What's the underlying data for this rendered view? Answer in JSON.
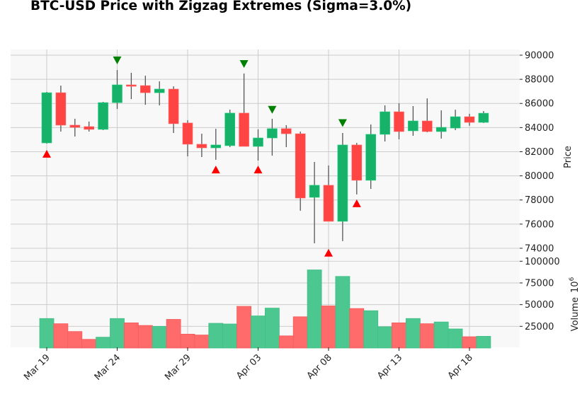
{
  "chart_data": {
    "type": "candlestick",
    "title": "BTC-USD Price with Zigzag Extremes (Sigma=3.0%)",
    "ylabel": "Price",
    "volume_ylabel": "Volume",
    "volume_exponent": "10",
    "volume_exponent_power": "6",
    "ylim": [
      73600,
      90400
    ],
    "volume_ylim": [
      0,
      103000
    ],
    "y_ticks": [
      74000,
      76000,
      78000,
      80000,
      82000,
      84000,
      86000,
      88000,
      90000
    ],
    "volume_ticks": [
      25000,
      50000,
      75000,
      100000
    ],
    "x_tick_labels": [
      "Mar 19",
      "Mar 24",
      "Mar 29",
      "Apr 03",
      "Apr 08",
      "Apr 13",
      "Apr 18"
    ],
    "x_tick_indices": [
      0,
      5,
      10,
      15,
      20,
      25,
      30
    ],
    "grid": true,
    "colors": {
      "up": "#17b26a",
      "down": "#ff4444",
      "up_volume": "#4dc790",
      "down_volume": "#ff6b6b",
      "wick": "#555555",
      "peak_marker": "#008000",
      "trough_marker": "#ff0000",
      "panel_bg": "#f8f8f8",
      "grid": "#cccccc"
    },
    "dates": [
      "Mar 19",
      "Mar 20",
      "Mar 21",
      "Mar 22",
      "Mar 23",
      "Mar 24",
      "Mar 25",
      "Mar 26",
      "Mar 27",
      "Mar 28",
      "Mar 29",
      "Mar 30",
      "Mar 31",
      "Apr 01",
      "Apr 02",
      "Apr 03",
      "Apr 04",
      "Apr 05",
      "Apr 06",
      "Apr 07",
      "Apr 08",
      "Apr 09",
      "Apr 10",
      "Apr 11",
      "Apr 12",
      "Apr 13",
      "Apr 14",
      "Apr 15",
      "Apr 16",
      "Apr 17",
      "Apr 18",
      "Apr 19"
    ],
    "open": [
      82730,
      86890,
      84200,
      84080,
      83850,
      86070,
      87540,
      87480,
      86890,
      87190,
      84380,
      82620,
      82320,
      82500,
      85200,
      82440,
      83140,
      83910,
      83490,
      78220,
      79220,
      76230,
      82560,
      79630,
      83440,
      85310,
      83730,
      84550,
      83670,
      83960,
      84900,
      84430
    ],
    "high": [
      86950,
      87480,
      84730,
      84500,
      86130,
      88770,
      88540,
      88300,
      87830,
      87420,
      84610,
      83490,
      83900,
      85490,
      88480,
      83850,
      84730,
      84200,
      83670,
      81150,
      80860,
      83550,
      82730,
      84260,
      85840,
      86010,
      85780,
      86420,
      85430,
      85480,
      85140,
      85370
    ],
    "low": [
      82670,
      83670,
      83260,
      83670,
      83790,
      85540,
      86360,
      85890,
      85840,
      83550,
      81620,
      81560,
      81330,
      82380,
      82440,
      81270,
      81680,
      82380,
      77110,
      74410,
      76230,
      74590,
      78460,
      78920,
      82850,
      83030,
      83320,
      83610,
      83090,
      83790,
      84150,
      84380
    ],
    "close": [
      86890,
      84200,
      84020,
      83850,
      86070,
      87540,
      87420,
      86890,
      87190,
      84320,
      82620,
      82320,
      82560,
      85200,
      82440,
      83140,
      83910,
      83490,
      78160,
      79220,
      76230,
      82560,
      79630,
      83440,
      85310,
      83670,
      84550,
      83670,
      84020,
      84900,
      84430,
      85190
    ],
    "volume": [
      34000,
      28000,
      19000,
      10000,
      12500,
      34000,
      29000,
      26000,
      25000,
      33000,
      16000,
      15000,
      28500,
      27700,
      48000,
      37000,
      46000,
      14000,
      36000,
      90000,
      48500,
      82500,
      45500,
      43000,
      24500,
      29000,
      34000,
      28000,
      30000,
      22000,
      13000,
      13500
    ],
    "zigzag_peaks": [
      {
        "index": 5,
        "price": 89600
      },
      {
        "index": 14,
        "price": 89300
      },
      {
        "index": 16,
        "price": 85500
      },
      {
        "index": 21,
        "price": 84400
      }
    ],
    "zigzag_troughs": [
      {
        "index": 0,
        "price": 81800
      },
      {
        "index": 12,
        "price": 80500
      },
      {
        "index": 15,
        "price": 80500
      },
      {
        "index": 20,
        "price": 73600
      },
      {
        "index": 22,
        "price": 77700
      }
    ]
  }
}
